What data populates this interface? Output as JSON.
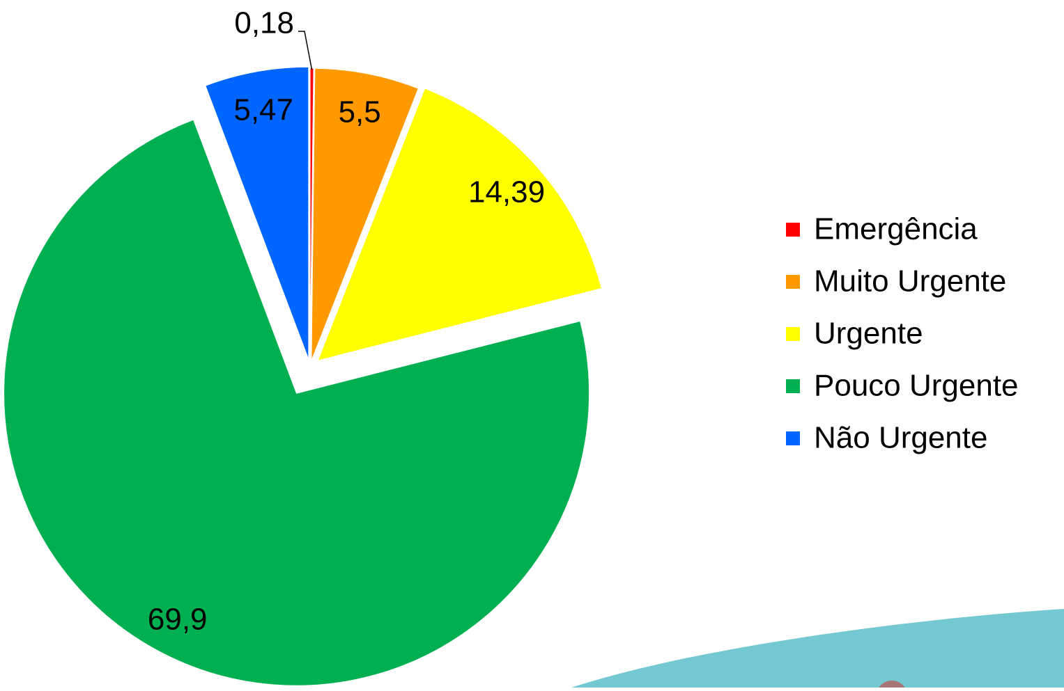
{
  "chart_data": {
    "type": "pie",
    "categories": [
      "Emergência",
      "Muito Urgente",
      "Urgente",
      "Pouco Urgente",
      "Não Urgente"
    ],
    "values": [
      0.18,
      5.5,
      14.39,
      69.9,
      5.47
    ],
    "value_labels": [
      "0,18",
      "5,5",
      "14,39",
      "69,9",
      "5,47"
    ],
    "colors": [
      "#ff0000",
      "#ff9900",
      "#ffff00",
      "#00b050",
      "#0066ff"
    ],
    "legend": "right"
  }
}
